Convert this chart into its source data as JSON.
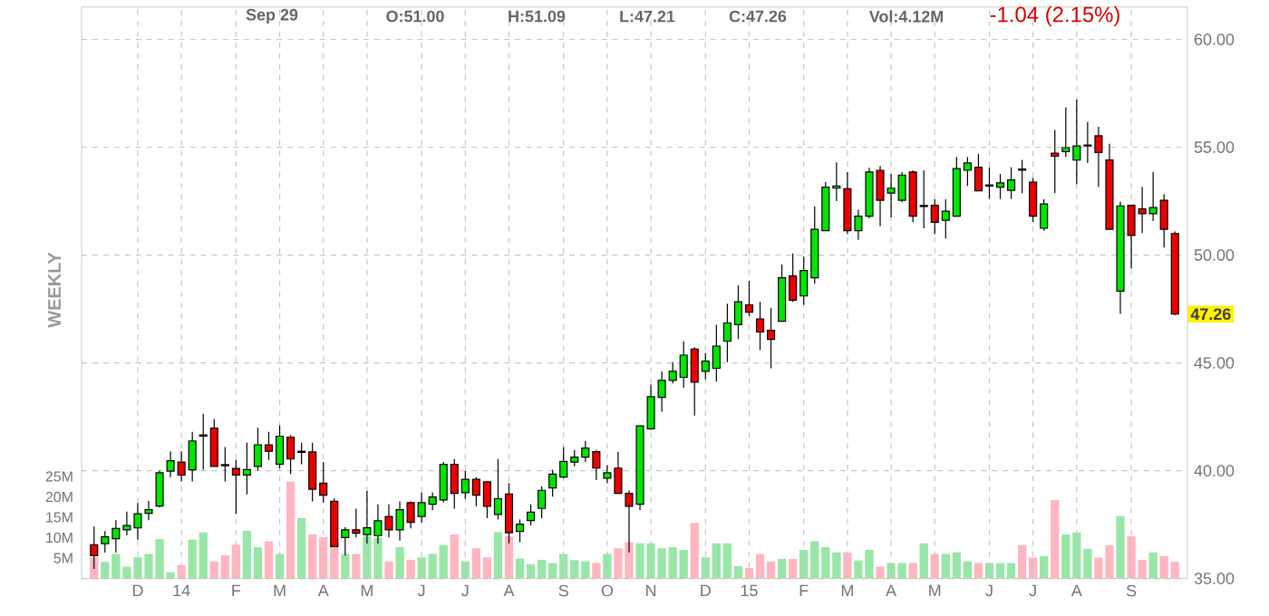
{
  "chart_data": {
    "type": "candlestick",
    "grid": true,
    "annotations": [
      "Sep 29",
      "O:51.00",
      "H:51.09",
      "L:47.21",
      "C:47.26",
      "Vol:4.12M",
      "-1.04 (2.15%)",
      "WEEKLY",
      {
        "text": "47.26",
        "x": "2015-10-06",
        "y": 47.26
      }
    ],
    "xlim": [
      "2013-10-27",
      "2015-10-06"
    ],
    "xticks": [
      {
        "value": "2013-12-02",
        "label": "D"
      },
      {
        "value": "2013-12-30",
        "label": "14"
      },
      {
        "value": "2014-02-03",
        "label": "F"
      },
      {
        "value": "2014-03-03",
        "label": "M"
      },
      {
        "value": "2014-03-31",
        "label": "A"
      },
      {
        "value": "2014-04-28",
        "label": "M"
      },
      {
        "value": "2014-06-02",
        "label": "J"
      },
      {
        "value": "2014-06-30",
        "label": "J"
      },
      {
        "value": "2014-07-28",
        "label": "A"
      },
      {
        "value": "2014-09-01",
        "label": "S"
      },
      {
        "value": "2014-09-29",
        "label": "O"
      },
      {
        "value": "2014-10-27",
        "label": "N"
      },
      {
        "value": "2014-12-01",
        "label": "D"
      },
      {
        "value": "2014-12-29",
        "label": "15"
      },
      {
        "value": "2015-02-02",
        "label": "F"
      },
      {
        "value": "2015-03-02",
        "label": "M"
      },
      {
        "value": "2015-03-30",
        "label": "A"
      },
      {
        "value": "2015-04-27",
        "label": "M"
      },
      {
        "value": "2015-06-01",
        "label": "J"
      },
      {
        "value": "2015-06-29",
        "label": "J"
      },
      {
        "value": "2015-07-27",
        "label": "A"
      },
      {
        "value": "2015-08-31",
        "label": "S"
      }
    ],
    "ylim": [
      35,
      61.5
    ],
    "yticks": [
      {
        "value": 35,
        "label": "35.00"
      },
      {
        "value": 40,
        "label": "40.00"
      },
      {
        "value": 45,
        "label": "45.00"
      },
      {
        "value": 50,
        "label": "50.00"
      },
      {
        "value": 55,
        "label": "55.00"
      },
      {
        "value": 60,
        "label": "60.00"
      }
    ],
    "y2lim": [
      0,
      140
    ],
    "y2ticks": [
      {
        "value": 5,
        "label": "5M"
      },
      {
        "value": 10,
        "label": "10M"
      },
      {
        "value": 15,
        "label": "15M"
      },
      {
        "value": 20,
        "label": "20M"
      },
      {
        "value": 25,
        "label": "25M"
      }
    ],
    "series": [
      {
        "type": "bar",
        "axis": "y2",
        "color": "#98e6a8",
        "x": [
          "2013-11-11",
          "2013-11-18",
          "2013-11-25",
          "2013-12-02",
          "2013-12-09",
          "2013-12-16",
          "2013-12-23",
          "2014-01-06",
          "2014-01-13",
          "2014-02-10",
          "2014-02-17",
          "2014-03-03",
          "2014-03-17",
          "2014-04-14",
          "2014-04-28",
          "2014-05-05",
          "2014-05-19",
          "2014-06-02",
          "2014-06-09",
          "2014-06-16",
          "2014-06-30",
          "2014-07-21",
          "2014-08-04",
          "2014-08-11",
          "2014-08-18",
          "2014-08-25",
          "2014-09-01",
          "2014-09-08",
          "2014-09-15",
          "2014-09-29",
          "2014-10-20",
          "2014-10-27",
          "2014-11-03",
          "2014-11-10",
          "2014-11-17",
          "2014-12-01",
          "2014-12-08",
          "2014-12-15",
          "2014-12-22",
          "2015-01-19",
          "2015-02-02",
          "2015-02-09",
          "2015-02-16",
          "2015-02-23",
          "2015-03-09",
          "2015-03-16",
          "2015-03-30",
          "2015-04-06",
          "2015-04-20",
          "2015-05-04",
          "2015-05-11",
          "2015-05-18",
          "2015-06-01",
          "2015-06-08",
          "2015-06-15",
          "2015-07-06",
          "2015-07-20",
          "2015-07-27",
          "2015-08-03",
          "2015-08-24",
          "2015-09-14"
        ],
        "values": [
          4.1,
          6.0,
          2.9,
          5.2,
          6.0,
          9.7,
          1.5,
          9.5,
          11.3,
          11.7,
          7.7,
          6.0,
          14.8,
          6.0,
          10.4,
          10.0,
          7.7,
          5.2,
          6.0,
          8.2,
          4.2,
          11.4,
          4.9,
          3.5,
          4.6,
          3.8,
          6.0,
          4.5,
          4.2,
          6.0,
          8.6,
          8.6,
          7.4,
          7.7,
          7.0,
          5.2,
          8.6,
          8.6,
          3.0,
          4.8,
          7.0,
          9.1,
          7.7,
          6.4,
          4.4,
          7.0,
          3.8,
          3.8,
          8.6,
          6.0,
          6.4,
          4.2,
          3.8,
          3.8,
          3.8,
          5.5,
          10.8,
          11.3,
          7.3,
          15.3,
          6.4
        ]
      },
      {
        "type": "bar",
        "axis": "y2",
        "color": "#ffb6c1",
        "x": [
          "2013-11-04",
          "2013-12-30",
          "2014-01-20",
          "2014-01-27",
          "2014-02-03",
          "2014-02-24",
          "2014-03-10",
          "2014-03-24",
          "2014-03-31",
          "2014-04-07",
          "2014-04-21",
          "2014-05-12",
          "2014-05-26",
          "2014-06-23",
          "2014-07-07",
          "2014-07-14",
          "2014-07-28",
          "2014-09-22",
          "2014-10-06",
          "2014-10-13",
          "2014-11-24",
          "2014-12-29",
          "2015-01-05",
          "2015-01-12",
          "2015-01-26",
          "2015-03-02",
          "2015-03-23",
          "2015-04-13",
          "2015-04-27",
          "2015-05-25",
          "2015-06-22",
          "2015-06-29",
          "2015-07-13",
          "2015-08-10",
          "2015-08-17",
          "2015-08-31",
          "2015-09-07",
          "2015-09-21",
          "2015-09-28"
        ],
        "values": [
          5.2,
          3.3,
          4.2,
          5.7,
          8.3,
          9.1,
          23.7,
          10.8,
          10.1,
          8.2,
          6.0,
          4.2,
          4.6,
          10.8,
          7.4,
          5.2,
          10.4,
          3.8,
          7.4,
          8.9,
          13.6,
          2.6,
          6.0,
          4.2,
          4.8,
          6.4,
          2.9,
          3.8,
          6.0,
          3.8,
          8.2,
          5.1,
          19.2,
          5.1,
          8.2,
          10.4,
          4.6,
          5.5,
          4.1
        ]
      },
      {
        "color": "#00e600",
        "x": [
          "2013-11-11",
          "2013-11-18",
          "2013-11-25",
          "2013-12-02",
          "2013-12-09",
          "2013-12-16",
          "2013-12-23",
          "2014-01-06",
          "2014-01-13",
          "2014-02-10",
          "2014-02-17",
          "2014-03-03",
          "2014-04-14",
          "2014-04-28",
          "2014-05-05",
          "2014-05-19",
          "2014-06-02",
          "2014-06-09",
          "2014-06-16",
          "2014-06-30",
          "2014-07-21",
          "2014-08-04",
          "2014-08-11",
          "2014-08-18",
          "2014-08-25",
          "2014-09-01",
          "2014-09-08",
          "2014-09-15",
          "2014-09-29",
          "2014-10-20",
          "2014-10-27",
          "2014-11-03",
          "2014-11-10",
          "2014-11-17",
          "2014-12-01",
          "2014-12-08",
          "2014-12-15",
          "2014-12-22",
          "2015-01-19",
          "2015-02-02",
          "2015-02-09",
          "2015-02-16",
          "2015-02-23",
          "2015-03-09",
          "2015-03-16",
          "2015-03-30",
          "2015-04-06",
          "2015-05-04",
          "2015-05-11",
          "2015-05-18",
          "2015-06-01",
          "2015-06-08",
          "2015-06-15",
          "2015-06-22",
          "2015-07-06",
          "2015-07-20",
          "2015-07-27",
          "2015-08-03",
          "2015-08-24",
          "2015-09-14"
        ],
        "ohlc": [
          [
            36.62,
            37.2,
            36.2,
            36.93
          ],
          [
            36.85,
            37.7,
            36.2,
            37.32
          ],
          [
            37.26,
            38.1,
            37.0,
            37.46
          ],
          [
            37.35,
            38.5,
            36.8,
            38.0
          ],
          [
            38.02,
            38.6,
            37.7,
            38.19
          ],
          [
            38.36,
            40.0,
            38.3,
            39.9
          ],
          [
            39.98,
            40.9,
            39.7,
            40.46
          ],
          [
            40.04,
            41.8,
            39.5,
            41.38
          ],
          [
            41.6,
            42.64,
            40.04,
            41.66
          ],
          [
            39.8,
            41.3,
            38.9,
            40.05
          ],
          [
            40.2,
            42.0,
            40.0,
            41.2
          ],
          [
            40.3,
            42.1,
            40.1,
            41.6
          ],
          [
            36.9,
            37.38,
            36.06,
            37.26
          ],
          [
            37.04,
            39.06,
            36.62,
            37.35
          ],
          [
            36.99,
            38.44,
            36.62,
            37.68
          ],
          [
            37.26,
            38.58,
            36.76,
            38.19
          ],
          [
            37.88,
            39.0,
            37.6,
            38.52
          ],
          [
            38.44,
            39.0,
            38.16,
            38.78
          ],
          [
            38.64,
            40.4,
            38.52,
            40.29
          ],
          [
            38.98,
            39.98,
            38.7,
            39.6
          ],
          [
            37.97,
            40.54,
            37.74,
            38.7
          ],
          [
            37.18,
            37.74,
            36.68,
            37.52
          ],
          [
            37.69,
            38.44,
            37.46,
            38.08
          ],
          [
            38.25,
            39.28,
            37.8,
            39.09
          ],
          [
            39.2,
            40.04,
            38.8,
            39.84
          ],
          [
            39.7,
            41.1,
            39.65,
            40.43
          ],
          [
            40.4,
            40.96,
            40.2,
            40.63
          ],
          [
            40.63,
            41.38,
            40.4,
            41.05
          ],
          [
            39.65,
            40.26,
            39.42,
            39.9
          ],
          [
            38.44,
            42.08,
            38.16,
            42.08
          ],
          [
            41.94,
            43.99,
            41.89,
            43.43
          ],
          [
            43.4,
            44.6,
            42.73,
            44.19
          ],
          [
            44.19,
            45.03,
            44.05,
            44.61
          ],
          [
            44.33,
            46.0,
            43.85,
            45.36
          ],
          [
            44.61,
            45.45,
            44.24,
            45.08
          ],
          [
            44.75,
            46.77,
            44.13,
            45.78
          ],
          [
            46.0,
            47.74,
            45.03,
            46.85
          ],
          [
            46.77,
            48.6,
            46.1,
            47.83
          ],
          [
            46.93,
            49.56,
            46.93,
            48.95
          ],
          [
            48.1,
            49.93,
            47.69,
            49.28
          ],
          [
            48.95,
            52.26,
            48.67,
            51.19
          ],
          [
            51.13,
            53.38,
            51.13,
            53.15
          ],
          [
            53.1,
            54.3,
            52.5,
            53.2
          ],
          [
            51.13,
            52.1,
            50.7,
            51.8
          ],
          [
            51.8,
            54.04,
            51.7,
            53.85
          ],
          [
            52.87,
            53.76,
            51.75,
            53.1
          ],
          [
            52.54,
            53.85,
            52.45,
            53.71
          ],
          [
            51.61,
            52.59,
            50.77,
            52.03
          ],
          [
            51.8,
            54.55,
            51.8,
            54.01
          ],
          [
            53.93,
            54.55,
            53.2,
            54.27
          ],
          [
            53.2,
            54.07,
            52.6,
            53.25
          ],
          [
            53.15,
            53.76,
            52.6,
            53.35
          ],
          [
            53.0,
            54.07,
            52.6,
            53.48
          ],
          [
            53.93,
            54.41,
            52.87,
            53.99
          ],
          [
            51.24,
            52.59,
            51.13,
            52.37
          ],
          [
            54.8,
            56.85,
            54.55,
            54.98
          ],
          [
            54.41,
            57.21,
            53.29,
            55.06
          ],
          [
            55.06,
            56.18,
            54.27,
            55.1
          ],
          [
            48.33,
            52.48,
            47.27,
            52.28
          ],
          [
            51.92,
            53.85,
            51.58,
            52.2
          ]
        ]
      },
      {
        "color": "#ee0000",
        "x": [
          "2013-11-04",
          "2013-12-30",
          "2014-01-20",
          "2014-01-27",
          "2014-02-03",
          "2014-02-24",
          "2014-03-10",
          "2014-03-17",
          "2014-03-24",
          "2014-03-31",
          "2014-04-07",
          "2014-04-21",
          "2014-05-12",
          "2014-05-26",
          "2014-06-23",
          "2014-07-07",
          "2014-07-14",
          "2014-07-28",
          "2014-09-22",
          "2014-10-06",
          "2014-10-13",
          "2014-11-24",
          "2014-12-29",
          "2015-01-05",
          "2015-01-12",
          "2015-01-26",
          "2015-03-02",
          "2015-03-23",
          "2015-04-13",
          "2015-04-20",
          "2015-04-27",
          "2015-05-25",
          "2015-06-29",
          "2015-07-13",
          "2015-08-10",
          "2015-08-17",
          "2015-08-31",
          "2015-09-07",
          "2015-09-21",
          "2015-09-28"
        ],
        "ohlc": [
          [
            36.57,
            37.41,
            35.45,
            36.06
          ],
          [
            40.4,
            40.9,
            39.5,
            39.8
          ],
          [
            41.97,
            42.4,
            40.2,
            40.2
          ],
          [
            40.28,
            41.1,
            39.5,
            40.23
          ],
          [
            40.1,
            40.5,
            38.0,
            39.8
          ],
          [
            41.2,
            41.8,
            40.5,
            40.9
          ],
          [
            41.55,
            41.65,
            39.84,
            40.54
          ],
          [
            40.9,
            41.3,
            40.3,
            40.85
          ],
          [
            40.87,
            41.3,
            38.58,
            39.14
          ],
          [
            39.42,
            40.4,
            38.52,
            38.86
          ],
          [
            38.58,
            38.72,
            36.48,
            36.48
          ],
          [
            37.26,
            38.24,
            36.9,
            37.1
          ],
          [
            37.88,
            38.44,
            36.9,
            37.26
          ],
          [
            38.52,
            38.58,
            37.32,
            37.6
          ],
          [
            40.29,
            40.54,
            38.24,
            38.95
          ],
          [
            39.6,
            39.7,
            38.35,
            38.86
          ],
          [
            39.48,
            39.48,
            37.8,
            38.35
          ],
          [
            38.92,
            39.42,
            36.62,
            37.12
          ],
          [
            40.88,
            40.96,
            39.56,
            40.12
          ],
          [
            40.12,
            40.88,
            38.95,
            38.95
          ],
          [
            38.95,
            39.09,
            36.2,
            38.35
          ],
          [
            45.64,
            45.73,
            42.56,
            44.1
          ],
          [
            47.69,
            48.8,
            47.18,
            47.35
          ],
          [
            47.04,
            47.83,
            45.59,
            46.43
          ],
          [
            46.51,
            47.55,
            44.75,
            46.09
          ],
          [
            49.03,
            50.07,
            47.83,
            47.91
          ],
          [
            53.07,
            53.85,
            50.97,
            51.13
          ],
          [
            53.93,
            54.13,
            51.33,
            52.54
          ],
          [
            53.85,
            53.93,
            51.52,
            51.8
          ],
          [
            52.3,
            53.93,
            51.24,
            52.25
          ],
          [
            52.31,
            52.59,
            50.97,
            51.52
          ],
          [
            54.07,
            54.69,
            52.98,
            52.98
          ],
          [
            53.38,
            53.57,
            51.52,
            51.8
          ],
          [
            54.72,
            55.8,
            52.87,
            54.58
          ],
          [
            55.53,
            55.95,
            53.15,
            54.75
          ],
          [
            54.41,
            55.16,
            51.19,
            51.19
          ],
          [
            52.31,
            52.31,
            49.37,
            50.91
          ],
          [
            52.14,
            53.15,
            51.02,
            51.92
          ],
          [
            52.54,
            52.82,
            50.35,
            51.19
          ],
          [
            51.0,
            51.09,
            47.21,
            47.26
          ]
        ]
      }
    ]
  }
}
